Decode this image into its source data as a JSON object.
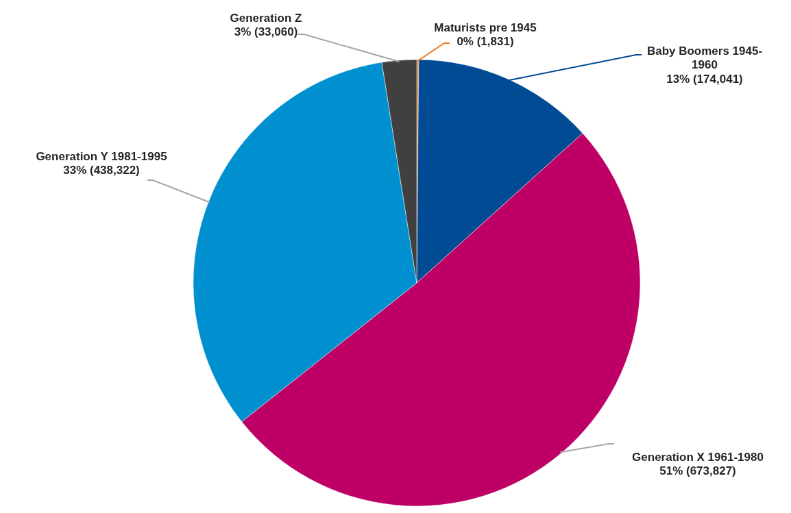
{
  "chart_data": {
    "type": "pie",
    "categories": [
      "Maturists pre 1945",
      "Baby Boomers 1945-1960",
      "Generation X 1961-1980",
      "Generation Y 1981-1995",
      "Generation Z"
    ],
    "values": [
      1831,
      174041,
      673827,
      438322,
      33060
    ],
    "value_labels": [
      "0% (1,831)",
      "13% (174,041)",
      "51% (673,827)",
      "33% (438,322)",
      "3% (33,060)"
    ],
    "colors": [
      "#e87722",
      "#004b93",
      "#be0066",
      "#0090d0",
      "#404040"
    ]
  }
}
